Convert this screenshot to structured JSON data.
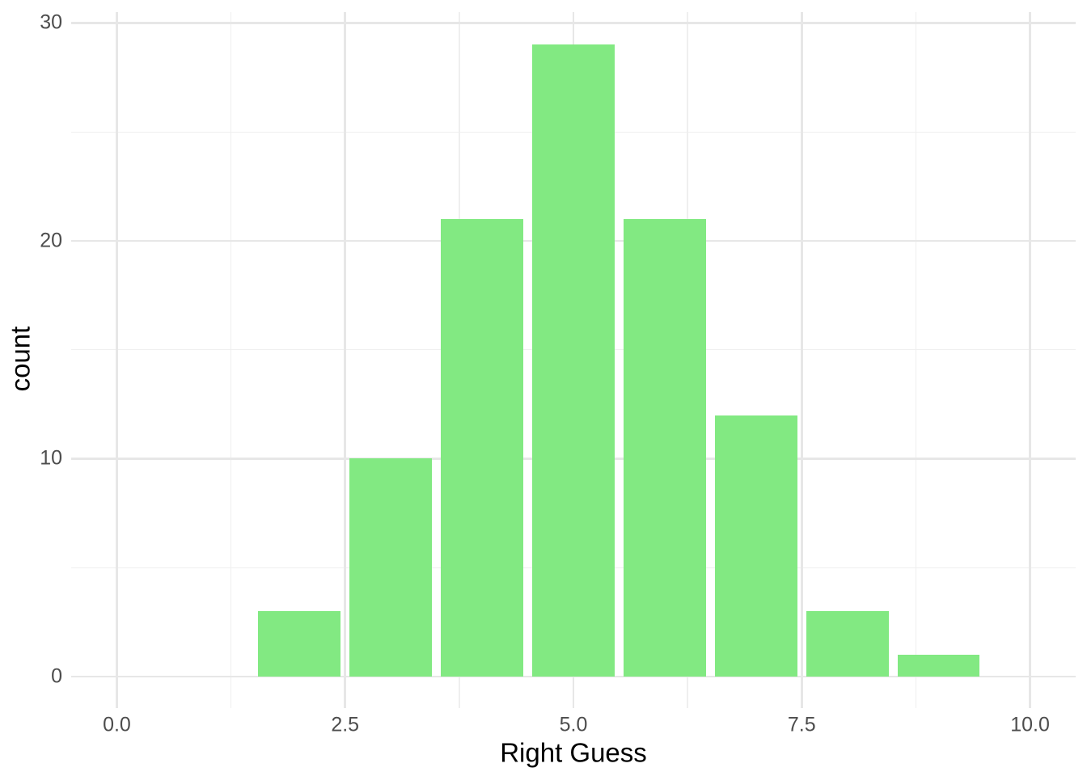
{
  "chart_data": {
    "type": "bar",
    "subtype": "histogram",
    "title": "",
    "xlabel": "Right Guess",
    "ylabel": "count",
    "categories": [
      2,
      3,
      4,
      5,
      6,
      7,
      8,
      9
    ],
    "values": [
      3,
      10,
      21,
      29,
      21,
      12,
      3,
      1
    ],
    "bar_width": 0.9,
    "xlim": [
      -0.5,
      10.5
    ],
    "ylim": [
      -1.45,
      30.5
    ],
    "x_ticks": {
      "values": [
        0,
        2.5,
        5,
        7.5,
        10
      ],
      "labels": [
        "0.0",
        "2.5",
        "5.0",
        "7.5",
        "10.0"
      ]
    },
    "y_ticks": {
      "values": [
        0,
        10,
        20,
        30
      ],
      "labels": [
        "0",
        "10",
        "20",
        "30"
      ]
    },
    "x_minor_gridlines": [
      1.25,
      3.75,
      6.25,
      8.75
    ],
    "y_minor_gridlines": [
      5,
      15,
      25
    ],
    "grid": true,
    "legend": "none",
    "colors": {
      "bar_fill": "#82E982",
      "grid_major": "#E7E7E7",
      "grid_minor": "#EFEFEF",
      "axis_text": "#4D4D4D",
      "axis_title": "#000000",
      "background": "#FFFFFF"
    }
  }
}
